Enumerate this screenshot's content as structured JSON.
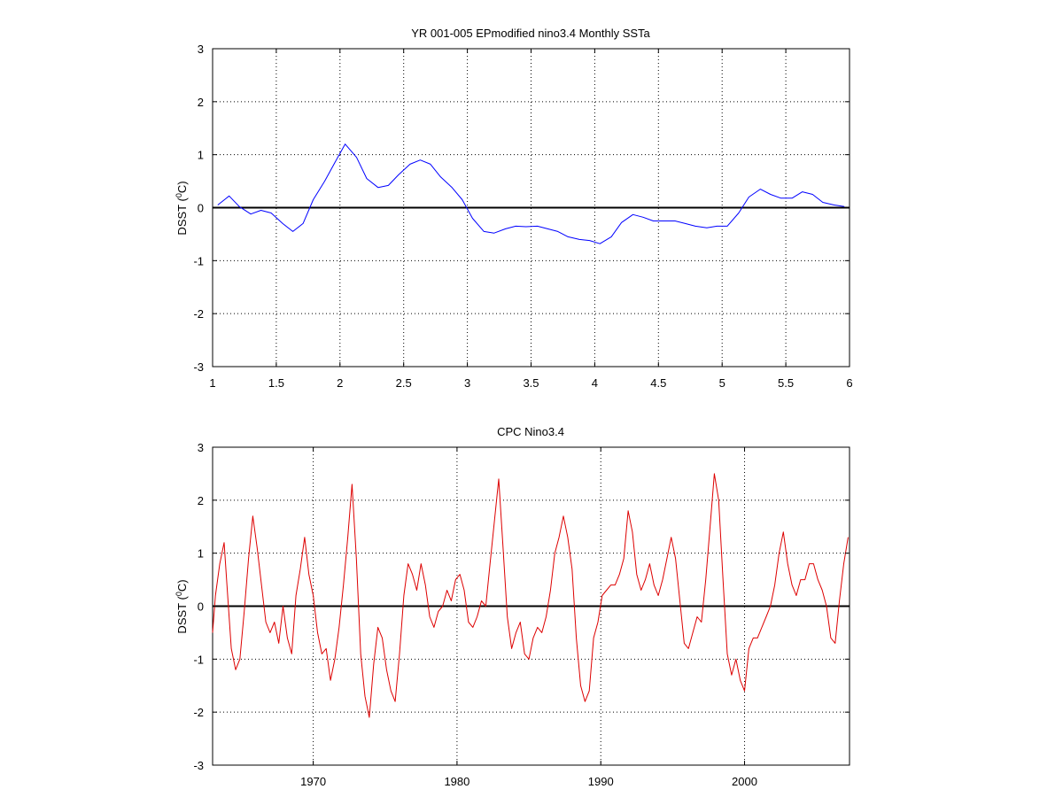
{
  "chart_data": [
    {
      "type": "line",
      "title": "YR 001-005 EPmodified nino3.4 Monthly SSTa",
      "ylabel_main": "DSST (",
      "ylabel_sup": "0",
      "ylabel_tail": "C)",
      "xlim": [
        1,
        6
      ],
      "ylim": [
        -3,
        3
      ],
      "xticks": [
        1,
        1.5,
        2,
        2.5,
        3,
        3.5,
        4,
        4.5,
        5,
        5.5,
        6
      ],
      "xtick_labels": [
        "1",
        "1.5",
        "2",
        "2.5",
        "3",
        "3.5",
        "4",
        "4.5",
        "5",
        "5.5",
        "6"
      ],
      "yticks": [
        -3,
        -2,
        -1,
        0,
        1,
        2,
        3
      ],
      "ytick_labels": [
        "-3",
        "-2",
        "-1",
        "0",
        "1",
        "2",
        "3"
      ],
      "grid": true,
      "reference_line": 0,
      "series": [
        {
          "color": "#0000ff",
          "x": [
            1.04,
            1.13,
            1.21,
            1.3,
            1.38,
            1.46,
            1.55,
            1.63,
            1.71,
            1.79,
            1.88,
            1.96,
            2.04,
            2.13,
            2.21,
            2.3,
            2.38,
            2.46,
            2.55,
            2.63,
            2.71,
            2.79,
            2.88,
            2.96,
            3.04,
            3.13,
            3.21,
            3.3,
            3.38,
            3.46,
            3.55,
            3.63,
            3.71,
            3.79,
            3.88,
            3.96,
            4.04,
            4.13,
            4.21,
            4.3,
            4.38,
            4.46,
            4.55,
            4.63,
            4.71,
            4.79,
            4.88,
            4.96,
            5.04,
            5.13,
            5.21,
            5.3,
            5.38,
            5.46,
            5.55,
            5.63,
            5.71,
            5.79,
            5.88,
            5.96
          ],
          "y": [
            0.05,
            0.22,
            0.02,
            -0.12,
            -0.05,
            -0.1,
            -0.3,
            -0.45,
            -0.3,
            0.15,
            0.5,
            0.85,
            1.2,
            0.95,
            0.55,
            0.38,
            0.42,
            0.62,
            0.82,
            0.9,
            0.82,
            0.58,
            0.38,
            0.15,
            -0.2,
            -0.45,
            -0.48,
            -0.4,
            -0.35,
            -0.36,
            -0.35,
            -0.4,
            -0.45,
            -0.55,
            -0.6,
            -0.62,
            -0.68,
            -0.55,
            -0.28,
            -0.13,
            -0.18,
            -0.25,
            -0.25,
            -0.25,
            -0.3,
            -0.35,
            -0.38,
            -0.35,
            -0.35,
            -0.1,
            0.2,
            0.35,
            0.25,
            0.18,
            0.18,
            0.3,
            0.25,
            0.1,
            0.05,
            0.02
          ]
        }
      ]
    },
    {
      "type": "line",
      "title": "CPC Nino3.4",
      "ylabel_main": "DSST (",
      "ylabel_sup": "0",
      "ylabel_tail": "C)",
      "xlim": [
        1963,
        2007.3
      ],
      "ylim": [
        -3,
        3
      ],
      "xticks": [
        1970,
        1980,
        1990,
        2000
      ],
      "xtick_labels": [
        "1970",
        "1980",
        "1990",
        "2000"
      ],
      "yticks": [
        -3,
        -2,
        -1,
        0,
        1,
        2,
        3
      ],
      "ytick_labels": [
        "-3",
        "-2",
        "-1",
        "0",
        "1",
        "2",
        "3"
      ],
      "grid": true,
      "reference_line": 0,
      "series": [
        {
          "color": "#dd0000",
          "x": [
            1963.0,
            1963.2,
            1963.5,
            1963.8,
            1964.0,
            1964.3,
            1964.6,
            1964.9,
            1965.2,
            1965.5,
            1965.8,
            1966.1,
            1966.4,
            1966.7,
            1967.0,
            1967.3,
            1967.6,
            1967.9,
            1968.2,
            1968.5,
            1968.8,
            1969.1,
            1969.4,
            1969.7,
            1970.0,
            1970.3,
            1970.6,
            1970.9,
            1971.2,
            1971.5,
            1971.8,
            1972.1,
            1972.4,
            1972.7,
            1973.0,
            1973.3,
            1973.6,
            1973.9,
            1974.2,
            1974.5,
            1974.8,
            1975.1,
            1975.4,
            1975.7,
            1976.0,
            1976.3,
            1976.6,
            1976.9,
            1977.2,
            1977.5,
            1977.8,
            1978.1,
            1978.4,
            1978.7,
            1979.0,
            1979.3,
            1979.6,
            1979.9,
            1980.2,
            1980.5,
            1980.8,
            1981.1,
            1981.4,
            1981.7,
            1982.0,
            1982.3,
            1982.6,
            1982.9,
            1983.2,
            1983.5,
            1983.8,
            1984.1,
            1984.4,
            1984.7,
            1985.0,
            1985.3,
            1985.6,
            1985.9,
            1986.2,
            1986.5,
            1986.8,
            1987.1,
            1987.4,
            1987.7,
            1988.0,
            1988.3,
            1988.6,
            1988.9,
            1989.2,
            1989.5,
            1989.8,
            1990.1,
            1990.4,
            1990.7,
            1991.0,
            1991.3,
            1991.6,
            1991.9,
            1992.2,
            1992.5,
            1992.8,
            1993.1,
            1993.4,
            1993.7,
            1994.0,
            1994.3,
            1994.6,
            1994.9,
            1995.2,
            1995.5,
            1995.8,
            1996.1,
            1996.4,
            1996.7,
            1997.0,
            1997.3,
            1997.6,
            1997.9,
            1998.2,
            1998.5,
            1998.8,
            1999.1,
            1999.4,
            1999.7,
            2000.0,
            2000.3,
            2000.6,
            2000.9,
            2001.2,
            2001.5,
            2001.8,
            2002.1,
            2002.4,
            2002.7,
            2003.0,
            2003.3,
            2003.6,
            2003.9,
            2004.2,
            2004.5,
            2004.8,
            2005.1,
            2005.4,
            2005.7,
            2006.0,
            2006.3,
            2006.6,
            2006.9,
            2007.2
          ],
          "y": [
            -0.5,
            0.2,
            0.8,
            1.2,
            0.4,
            -0.8,
            -1.2,
            -1.0,
            -0.1,
            0.9,
            1.7,
            1.1,
            0.4,
            -0.3,
            -0.5,
            -0.3,
            -0.7,
            0.0,
            -0.6,
            -0.9,
            0.2,
            0.7,
            1.3,
            0.6,
            0.2,
            -0.5,
            -0.9,
            -0.8,
            -1.4,
            -1.0,
            -0.4,
            0.4,
            1.3,
            2.3,
            0.9,
            -0.9,
            -1.7,
            -2.1,
            -1.1,
            -0.4,
            -0.6,
            -1.2,
            -1.6,
            -1.8,
            -0.9,
            0.2,
            0.8,
            0.6,
            0.3,
            0.8,
            0.4,
            -0.2,
            -0.4,
            -0.1,
            0.0,
            0.3,
            0.1,
            0.5,
            0.6,
            0.3,
            -0.3,
            -0.4,
            -0.2,
            0.1,
            0.0,
            0.8,
            1.6,
            2.4,
            1.1,
            -0.2,
            -0.8,
            -0.5,
            -0.3,
            -0.9,
            -1.0,
            -0.6,
            -0.4,
            -0.5,
            -0.2,
            0.3,
            1.0,
            1.3,
            1.7,
            1.3,
            0.7,
            -0.6,
            -1.5,
            -1.8,
            -1.6,
            -0.6,
            -0.3,
            0.2,
            0.3,
            0.4,
            0.4,
            0.6,
            0.9,
            1.8,
            1.4,
            0.6,
            0.3,
            0.5,
            0.8,
            0.4,
            0.2,
            0.5,
            0.9,
            1.3,
            0.9,
            0.1,
            -0.7,
            -0.8,
            -0.5,
            -0.2,
            -0.3,
            0.5,
            1.5,
            2.5,
            2.0,
            0.5,
            -0.9,
            -1.3,
            -1.0,
            -1.4,
            -1.6,
            -0.8,
            -0.6,
            -0.6,
            -0.4,
            -0.2,
            0.0,
            0.4,
            1.0,
            1.4,
            0.8,
            0.4,
            0.2,
            0.5,
            0.5,
            0.8,
            0.8,
            0.5,
            0.3,
            0.0,
            -0.6,
            -0.7,
            0.1,
            0.8,
            1.3
          ]
        }
      ]
    }
  ]
}
